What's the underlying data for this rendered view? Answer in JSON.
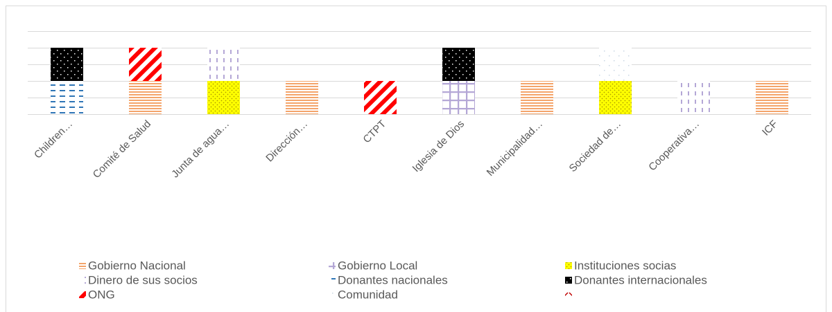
{
  "chart_data": {
    "type": "bar",
    "stacked": true,
    "categories": [
      "Children…",
      "Comité de Salud",
      "Junta de agua…",
      "Dirección…",
      "CTPT",
      "Iglesia de Dios",
      "Municipalidad…",
      "Sociedad de…",
      "Cooperativa…",
      "ICF"
    ],
    "series": [
      {
        "name": "Gobierno Nacional",
        "color": "#f4a46a",
        "pattern": "hlines",
        "values": [
          null,
          1,
          null,
          1,
          null,
          null,
          1,
          null,
          null,
          1
        ]
      },
      {
        "name": "Gobierno Local",
        "color": "#b4a7d6",
        "pattern": "grid",
        "values": [
          null,
          null,
          null,
          null,
          null,
          1,
          null,
          null,
          null,
          null
        ]
      },
      {
        "name": "Instituciones socias",
        "color": "#ffff00",
        "pattern": "dots",
        "values": [
          null,
          null,
          1,
          null,
          null,
          null,
          null,
          1,
          null,
          null
        ]
      },
      {
        "name": "Dinero de sus socios",
        "color": "#b4a7d6",
        "pattern": "vdash",
        "values": [
          null,
          null,
          1,
          null,
          null,
          null,
          null,
          null,
          1,
          null
        ]
      },
      {
        "name": "Donantes nacionales",
        "color": "#2e75b6",
        "pattern": "hdash",
        "values": [
          1,
          null,
          null,
          null,
          null,
          null,
          null,
          null,
          null,
          null
        ]
      },
      {
        "name": "Donantes internacionales",
        "color": "#000000",
        "pattern": "darkdots",
        "values": [
          1,
          null,
          null,
          null,
          null,
          1,
          null,
          null,
          null,
          null
        ]
      },
      {
        "name": "ONG",
        "color": "#ff0000",
        "pattern": "diag",
        "values": [
          null,
          1,
          null,
          null,
          1,
          null,
          null,
          null,
          null,
          null
        ]
      },
      {
        "name": "Comunidad",
        "color": "#c9d6e3",
        "pattern": "sparse",
        "values": [
          null,
          null,
          null,
          null,
          null,
          null,
          null,
          1,
          null,
          null
        ]
      },
      {
        "name": null,
        "color": "#c00000",
        "pattern": "chevron",
        "values": [
          null,
          null,
          null,
          null,
          null,
          null,
          null,
          null,
          null,
          null
        ]
      }
    ],
    "ylim": [
      0,
      2.5
    ],
    "yticks": [
      0,
      0.5,
      1,
      1.5,
      2,
      2.5
    ],
    "grid": true,
    "legend": "bottom"
  }
}
